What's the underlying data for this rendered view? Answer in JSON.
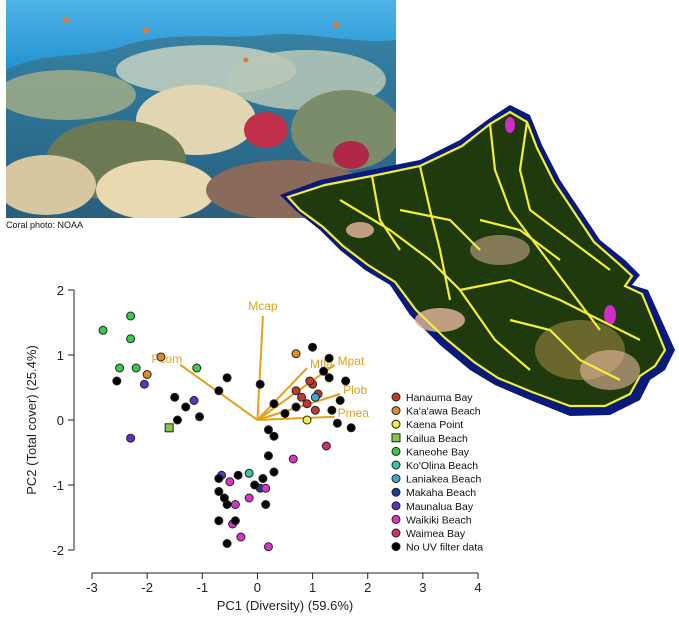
{
  "photo": {
    "credit": "Coral photo: NOAA",
    "colors": {
      "water_top": "#1f8fd0",
      "water_mid": "#1668a8",
      "reef": "#c9b48a",
      "coral_red": "#c0304a",
      "coral_light": "#e8d9b0"
    }
  },
  "map": {
    "icon": "oahu-island-map-icon",
    "colors": {
      "water": "#0a1a7a",
      "land": "#1f3a0c",
      "roads": "#f2ee3a",
      "urban": "#e7b8a0",
      "accent": "#d22bc8"
    }
  },
  "chart_data": {
    "type": "scatter",
    "title": "",
    "xlabel": "PC1 (Diversity) (59.6%)",
    "ylabel": "PC2 (Total cover) (25.4%)",
    "xlim": [
      -3,
      4
    ],
    "ylim": [
      -2,
      2
    ],
    "xticks": [
      "-3",
      "-2",
      "-1",
      "0",
      "1",
      "2",
      "3",
      "4"
    ],
    "yticks": [
      "2",
      "1",
      "0",
      "-1",
      "-2"
    ],
    "grid": false,
    "legend_position": "right",
    "loadings": [
      {
        "name": "Mcap",
        "x": 0.1,
        "y": 1.6
      },
      {
        "name": "Pcom",
        "x": -1.4,
        "y": 0.85
      },
      {
        "name": "Mfla",
        "x": 0.9,
        "y": 0.8
      },
      {
        "name": "Mpat",
        "x": 1.4,
        "y": 0.85
      },
      {
        "name": "Plob",
        "x": 1.5,
        "y": 0.4
      },
      {
        "name": "Pmea",
        "x": 1.4,
        "y": 0.05
      }
    ],
    "series": [
      {
        "name": "Hanauma Bay",
        "color": "#c0392b",
        "marker": "circle",
        "points": [
          [
            0.8,
            0.35
          ],
          [
            1.0,
            0.55
          ],
          [
            0.9,
            0.25
          ],
          [
            1.1,
            0.4
          ],
          [
            0.7,
            0.45
          ],
          [
            1.05,
            0.15
          ],
          [
            0.95,
            0.6
          ]
        ]
      },
      {
        "name": "Ka'a'awa Beach",
        "color": "#e08a2e",
        "marker": "circle",
        "points": [
          [
            -1.75,
            0.97
          ],
          [
            -2.0,
            0.7
          ],
          [
            0.7,
            1.02
          ]
        ]
      },
      {
        "name": "Kaena Point",
        "color": "#f2ea4a",
        "marker": "circle",
        "points": [
          [
            0.9,
            0.0
          ]
        ]
      },
      {
        "name": "Kailua Beach",
        "color": "#8bc34a",
        "marker": "square",
        "points": [
          [
            -1.6,
            -0.12
          ]
        ]
      },
      {
        "name": "Kaneohe Bay",
        "color": "#3cc84a",
        "marker": "circle",
        "points": [
          [
            -2.3,
            1.6
          ],
          [
            -2.3,
            1.25
          ],
          [
            -2.8,
            1.38
          ],
          [
            -2.5,
            0.8
          ],
          [
            -2.2,
            0.8
          ],
          [
            -1.1,
            0.8
          ]
        ]
      },
      {
        "name": "Ko'Olina Beach",
        "color": "#40c4a0",
        "marker": "circle",
        "points": [
          [
            -0.15,
            -0.82
          ]
        ]
      },
      {
        "name": "Laniakea Beach",
        "color": "#3fa9c9",
        "marker": "circle",
        "points": [
          [
            1.05,
            0.35
          ]
        ]
      },
      {
        "name": "Makaha Beach",
        "color": "#1f3a9c",
        "marker": "circle",
        "points": [
          [
            0.05,
            -1.05
          ]
        ]
      },
      {
        "name": "Maunalua Bay",
        "color": "#5a35b8",
        "marker": "circle",
        "points": [
          [
            -2.05,
            0.55
          ],
          [
            -2.3,
            -0.28
          ],
          [
            -1.15,
            0.3
          ],
          [
            -0.65,
            -0.85
          ]
        ]
      },
      {
        "name": "Waikiki Beach",
        "color": "#d735c8",
        "marker": "circle",
        "points": [
          [
            -0.5,
            -0.95
          ],
          [
            -0.4,
            -1.3
          ],
          [
            -0.45,
            -1.6
          ],
          [
            -0.15,
            -1.2
          ],
          [
            -0.3,
            -1.8
          ],
          [
            0.15,
            -1.05
          ],
          [
            0.2,
            -1.95
          ],
          [
            0.65,
            -0.6
          ]
        ]
      },
      {
        "name": "Waimea Bay",
        "color": "#c7356b",
        "marker": "circle",
        "points": [
          [
            1.25,
            -0.4
          ]
        ]
      },
      {
        "name": "No UV filter data",
        "color": "#000000",
        "marker": "circle",
        "points": [
          [
            -2.55,
            0.6
          ],
          [
            -1.5,
            0.35
          ],
          [
            -1.3,
            0.2
          ],
          [
            -1.45,
            0.0
          ],
          [
            -1.05,
            0.05
          ],
          [
            -0.7,
            0.45
          ],
          [
            -0.55,
            0.65
          ],
          [
            0.05,
            0.55
          ],
          [
            0.3,
            0.25
          ],
          [
            0.5,
            0.1
          ],
          [
            0.7,
            0.2
          ],
          [
            0.2,
            -0.15
          ],
          [
            0.3,
            -0.25
          ],
          [
            0.2,
            -0.55
          ],
          [
            0.3,
            -0.8
          ],
          [
            0.1,
            -0.9
          ],
          [
            -0.05,
            -1.0
          ],
          [
            0.15,
            -1.3
          ],
          [
            -0.35,
            -0.85
          ],
          [
            -0.55,
            -1.3
          ],
          [
            -0.7,
            -0.9
          ],
          [
            -0.7,
            -1.1
          ],
          [
            -0.6,
            -1.2
          ],
          [
            -0.7,
            -1.55
          ],
          [
            -0.4,
            -1.55
          ],
          [
            -0.55,
            -1.9
          ],
          [
            1.0,
            1.12
          ],
          [
            1.3,
            0.95
          ],
          [
            1.5,
            0.3
          ],
          [
            1.7,
            -0.12
          ],
          [
            1.35,
            0.15
          ],
          [
            1.6,
            0.6
          ],
          [
            1.45,
            -0.05
          ],
          [
            1.2,
            0.75
          ],
          [
            1.3,
            0.65
          ]
        ]
      }
    ]
  }
}
